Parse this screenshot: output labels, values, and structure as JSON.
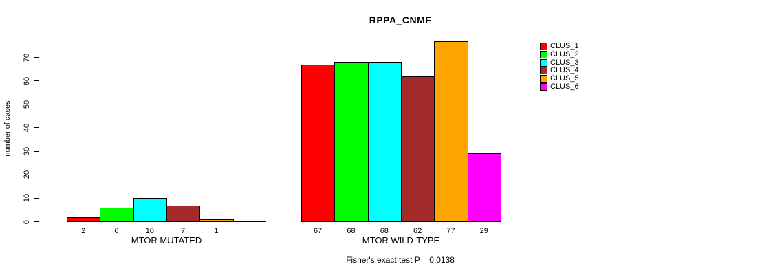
{
  "title": "RPPA_CNMF",
  "chart_data": {
    "type": "bar",
    "title": "RPPA_CNMF",
    "ylabel": "number of cases",
    "ylim": [
      0,
      70
    ],
    "yticks": [
      0,
      10,
      20,
      30,
      40,
      50,
      60,
      70
    ],
    "grid": false,
    "legend": {
      "position": "right",
      "entries": [
        {
          "label": "CLUS_1",
          "color": "#ff0000"
        },
        {
          "label": "CLUS_2",
          "color": "#00ff00"
        },
        {
          "label": "CLUS_3",
          "color": "#00ffff"
        },
        {
          "label": "CLUS_4",
          "color": "#a52a2a"
        },
        {
          "label": "CLUS_5",
          "color": "#ffa500"
        },
        {
          "label": "CLUS_6",
          "color": "#ff00ff"
        }
      ]
    },
    "groups": [
      {
        "label": "MTOR MUTATED",
        "series": [
          "CLUS_1",
          "CLUS_2",
          "CLUS_3",
          "CLUS_4",
          "CLUS_5",
          "CLUS_6"
        ],
        "values": [
          2,
          6,
          10,
          7,
          1,
          0
        ],
        "bar_labels": [
          "2",
          "6",
          "10",
          "7",
          "1",
          ""
        ],
        "colors": [
          "#ff0000",
          "#00ff00",
          "#00ffff",
          "#a52a2a",
          "#ffa500",
          "#ff00ff"
        ]
      },
      {
        "label": "MTOR WILD-TYPE",
        "series": [
          "CLUS_1",
          "CLUS_2",
          "CLUS_3",
          "CLUS_4",
          "CLUS_5",
          "CLUS_6"
        ],
        "values": [
          67,
          68,
          68,
          62,
          77,
          29
        ],
        "bar_labels": [
          "67",
          "68",
          "68",
          "62",
          "77",
          "29"
        ],
        "colors": [
          "#ff0000",
          "#00ff00",
          "#00ffff",
          "#a52a2a",
          "#ffa500",
          "#ff00ff"
        ]
      }
    ],
    "annotation": "Fisher's exact test P = 0.0138"
  }
}
